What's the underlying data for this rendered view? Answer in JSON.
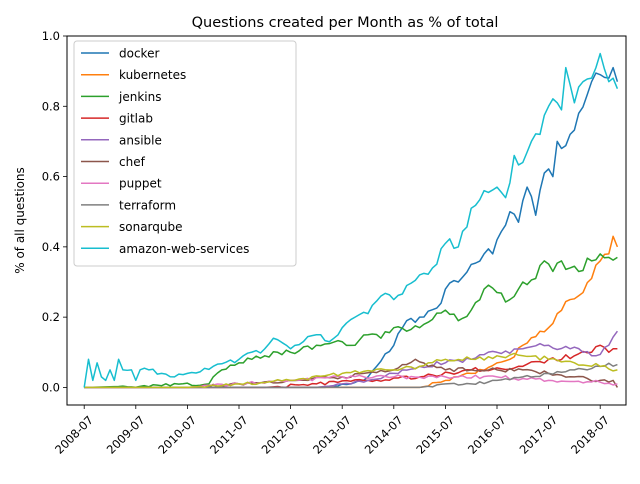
{
  "chart_data": {
    "type": "line",
    "title": "Questions created per Month as % of total",
    "xlabel": "",
    "ylabel": "% of all questions",
    "x_start": "2008-07",
    "x_end": "2018-11",
    "xlim": [
      "2008-03",
      "2019-01"
    ],
    "ylim": [
      -0.05,
      1.0
    ],
    "x_ticks": [
      "2008-07",
      "2009-07",
      "2010-07",
      "2011-07",
      "2012-07",
      "2013-07",
      "2014-07",
      "2015-07",
      "2016-07",
      "2017-07",
      "2018-07"
    ],
    "y_ticks": [
      "0.0",
      "0.2",
      "0.4",
      "0.6",
      "0.8",
      "1.0"
    ],
    "legend_position": "top-left",
    "grid": false,
    "series": [
      {
        "name": "docker",
        "color": "#1f77b4",
        "keypoints": [
          [
            "2008-07",
            0.0
          ],
          [
            "2013-03",
            0.0
          ],
          [
            "2013-09",
            0.01
          ],
          [
            "2014-01",
            0.03
          ],
          [
            "2014-03",
            0.06
          ],
          [
            "2014-07",
            0.12
          ],
          [
            "2014-10",
            0.19
          ],
          [
            "2015-01",
            0.2
          ],
          [
            "2015-06",
            0.24
          ],
          [
            "2015-07",
            0.28
          ],
          [
            "2015-10",
            0.3
          ],
          [
            "2016-01",
            0.35
          ],
          [
            "2016-04",
            0.38
          ],
          [
            "2016-06",
            0.38
          ],
          [
            "2016-07",
            0.42
          ],
          [
            "2016-10",
            0.5
          ],
          [
            "2016-12",
            0.47
          ],
          [
            "2017-02",
            0.57
          ],
          [
            "2017-04",
            0.49
          ],
          [
            "2017-06",
            0.61
          ],
          [
            "2017-08",
            0.6
          ],
          [
            "2017-09",
            0.7
          ],
          [
            "2017-10",
            0.68
          ],
          [
            "2017-12",
            0.72
          ],
          [
            "2018-02",
            0.78
          ],
          [
            "2018-05",
            0.87
          ],
          [
            "2018-07",
            0.89
          ],
          [
            "2018-09",
            0.88
          ],
          [
            "2018-10",
            0.91
          ],
          [
            "2018-11",
            0.87
          ]
        ]
      },
      {
        "name": "kubernetes",
        "color": "#ff7f0e",
        "keypoints": [
          [
            "2008-07",
            0.0
          ],
          [
            "2015-01",
            0.0
          ],
          [
            "2015-07",
            0.02
          ],
          [
            "2016-01",
            0.04
          ],
          [
            "2016-07",
            0.07
          ],
          [
            "2016-10",
            0.08
          ],
          [
            "2017-01",
            0.12
          ],
          [
            "2017-05",
            0.16
          ],
          [
            "2017-07",
            0.17
          ],
          [
            "2017-09",
            0.21
          ],
          [
            "2017-12",
            0.25
          ],
          [
            "2018-03",
            0.27
          ],
          [
            "2018-05",
            0.31
          ],
          [
            "2018-07",
            0.36
          ],
          [
            "2018-09",
            0.38
          ],
          [
            "2018-10",
            0.43
          ],
          [
            "2018-11",
            0.4
          ]
        ]
      },
      {
        "name": "jenkins",
        "color": "#2ca02c",
        "keypoints": [
          [
            "2008-07",
            0.0
          ],
          [
            "2010-12",
            0.01
          ],
          [
            "2011-01",
            0.03
          ],
          [
            "2011-03",
            0.05
          ],
          [
            "2011-07",
            0.07
          ],
          [
            "2011-10",
            0.08
          ],
          [
            "2012-01",
            0.09
          ],
          [
            "2012-04",
            0.1
          ],
          [
            "2012-07",
            0.1
          ],
          [
            "2013-01",
            0.12
          ],
          [
            "2013-07",
            0.13
          ],
          [
            "2013-10",
            0.12
          ],
          [
            "2014-01",
            0.15
          ],
          [
            "2014-04",
            0.14
          ],
          [
            "2014-07",
            0.17
          ],
          [
            "2014-10",
            0.16
          ],
          [
            "2015-01",
            0.17
          ],
          [
            "2015-07",
            0.22
          ],
          [
            "2015-10",
            0.19
          ],
          [
            "2016-01",
            0.22
          ],
          [
            "2016-04",
            0.28
          ],
          [
            "2016-07",
            0.27
          ],
          [
            "2016-10",
            0.25
          ],
          [
            "2017-01",
            0.3
          ],
          [
            "2017-04",
            0.31
          ],
          [
            "2017-06",
            0.36
          ],
          [
            "2017-08",
            0.33
          ],
          [
            "2017-10",
            0.36
          ],
          [
            "2017-12",
            0.34
          ],
          [
            "2018-02",
            0.33
          ],
          [
            "2018-05",
            0.36
          ],
          [
            "2018-07",
            0.38
          ],
          [
            "2018-09",
            0.37
          ],
          [
            "2018-11",
            0.37
          ]
        ]
      },
      {
        "name": "gitlab",
        "color": "#d62728",
        "keypoints": [
          [
            "2008-07",
            0.0
          ],
          [
            "2012-01",
            0.0
          ],
          [
            "2013-01",
            0.01
          ],
          [
            "2014-01",
            0.02
          ],
          [
            "2015-01",
            0.03
          ],
          [
            "2016-01",
            0.05
          ],
          [
            "2017-01",
            0.06
          ],
          [
            "2017-07",
            0.08
          ],
          [
            "2018-01",
            0.09
          ],
          [
            "2018-05",
            0.1
          ],
          [
            "2018-07",
            0.12
          ],
          [
            "2018-09",
            0.1
          ],
          [
            "2018-11",
            0.11
          ]
        ]
      },
      {
        "name": "ansible",
        "color": "#9467bd",
        "keypoints": [
          [
            "2008-07",
            0.0
          ],
          [
            "2013-01",
            0.0
          ],
          [
            "2013-07",
            0.01
          ],
          [
            "2014-01",
            0.02
          ],
          [
            "2014-07",
            0.04
          ],
          [
            "2015-01",
            0.06
          ],
          [
            "2015-07",
            0.07
          ],
          [
            "2016-01",
            0.08
          ],
          [
            "2016-07",
            0.1
          ],
          [
            "2017-01",
            0.11
          ],
          [
            "2017-07",
            0.12
          ],
          [
            "2017-12",
            0.11
          ],
          [
            "2018-03",
            0.1
          ],
          [
            "2018-06",
            0.09
          ],
          [
            "2018-09",
            0.12
          ],
          [
            "2018-11",
            0.16
          ]
        ]
      },
      {
        "name": "chef",
        "color": "#8c564b",
        "keypoints": [
          [
            "2008-07",
            0.0
          ],
          [
            "2010-07",
            0.0
          ],
          [
            "2011-07",
            0.01
          ],
          [
            "2012-07",
            0.02
          ],
          [
            "2013-07",
            0.03
          ],
          [
            "2014-07",
            0.05
          ],
          [
            "2014-12",
            0.08
          ],
          [
            "2015-03",
            0.06
          ],
          [
            "2015-07",
            0.05
          ],
          [
            "2016-01",
            0.05
          ],
          [
            "2016-07",
            0.05
          ],
          [
            "2017-01",
            0.05
          ],
          [
            "2017-07",
            0.04
          ],
          [
            "2018-01",
            0.03
          ],
          [
            "2018-07",
            0.02
          ],
          [
            "2018-10",
            0.02
          ],
          [
            "2018-11",
            0.0
          ]
        ]
      },
      {
        "name": "puppet",
        "color": "#e377c2",
        "keypoints": [
          [
            "2008-07",
            0.0
          ],
          [
            "2010-07",
            0.0
          ],
          [
            "2011-07",
            0.01
          ],
          [
            "2012-07",
            0.02
          ],
          [
            "2013-07",
            0.03
          ],
          [
            "2014-07",
            0.03
          ],
          [
            "2015-07",
            0.03
          ],
          [
            "2016-07",
            0.03
          ],
          [
            "2017-07",
            0.02
          ],
          [
            "2018-07",
            0.015
          ],
          [
            "2018-11",
            0.01
          ]
        ]
      },
      {
        "name": "terraform",
        "color": "#7f7f7f",
        "keypoints": [
          [
            "2008-07",
            0.0
          ],
          [
            "2015-01",
            0.0
          ],
          [
            "2015-07",
            0.01
          ],
          [
            "2016-01",
            0.01
          ],
          [
            "2016-07",
            0.02
          ],
          [
            "2017-01",
            0.03
          ],
          [
            "2017-07",
            0.04
          ],
          [
            "2018-01",
            0.05
          ],
          [
            "2018-07",
            0.06
          ],
          [
            "2018-11",
            0.065
          ]
        ]
      },
      {
        "name": "sonarqube",
        "color": "#bcbd22",
        "keypoints": [
          [
            "2008-07",
            0.0
          ],
          [
            "2010-07",
            0.0
          ],
          [
            "2011-07",
            0.01
          ],
          [
            "2012-07",
            0.02
          ],
          [
            "2013-07",
            0.04
          ],
          [
            "2014-07",
            0.05
          ],
          [
            "2015-01",
            0.06
          ],
          [
            "2015-07",
            0.08
          ],
          [
            "2016-01",
            0.08
          ],
          [
            "2016-07",
            0.09
          ],
          [
            "2017-01",
            0.09
          ],
          [
            "2017-07",
            0.08
          ],
          [
            "2018-01",
            0.07
          ],
          [
            "2018-07",
            0.06
          ],
          [
            "2018-11",
            0.05
          ]
        ]
      },
      {
        "name": "amazon-web-services",
        "color": "#17becf",
        "keypoints": [
          [
            "2008-07",
            0.0
          ],
          [
            "2008-08",
            0.08
          ],
          [
            "2008-09",
            0.02
          ],
          [
            "2008-10",
            0.07
          ],
          [
            "2008-11",
            0.03
          ],
          [
            "2008-12",
            0.02
          ],
          [
            "2009-01",
            0.05
          ],
          [
            "2009-02",
            0.02
          ],
          [
            "2009-03",
            0.08
          ],
          [
            "2009-04",
            0.05
          ],
          [
            "2009-06",
            0.05
          ],
          [
            "2009-07",
            0.02
          ],
          [
            "2009-08",
            0.05
          ],
          [
            "2009-10",
            0.05
          ],
          [
            "2010-01",
            0.04
          ],
          [
            "2010-04",
            0.03
          ],
          [
            "2010-07",
            0.04
          ],
          [
            "2011-01",
            0.06
          ],
          [
            "2011-07",
            0.08
          ],
          [
            "2012-01",
            0.11
          ],
          [
            "2012-03",
            0.14
          ],
          [
            "2012-07",
            0.11
          ],
          [
            "2013-01",
            0.15
          ],
          [
            "2013-04",
            0.13
          ],
          [
            "2013-07",
            0.17
          ],
          [
            "2013-10",
            0.2
          ],
          [
            "2014-01",
            0.21
          ],
          [
            "2014-04",
            0.26
          ],
          [
            "2014-07",
            0.25
          ],
          [
            "2014-10",
            0.29
          ],
          [
            "2015-01",
            0.32
          ],
          [
            "2015-04",
            0.34
          ],
          [
            "2015-07",
            0.41
          ],
          [
            "2015-10",
            0.4
          ],
          [
            "2016-01",
            0.51
          ],
          [
            "2016-04",
            0.56
          ],
          [
            "2016-07",
            0.57
          ],
          [
            "2016-09",
            0.54
          ],
          [
            "2016-11",
            0.66
          ],
          [
            "2017-01",
            0.64
          ],
          [
            "2017-03",
            0.7
          ],
          [
            "2017-05",
            0.72
          ],
          [
            "2017-07",
            0.8
          ],
          [
            "2017-09",
            0.81
          ],
          [
            "2017-10",
            0.79
          ],
          [
            "2017-11",
            0.91
          ],
          [
            "2018-01",
            0.81
          ],
          [
            "2018-03",
            0.87
          ],
          [
            "2018-05",
            0.88
          ],
          [
            "2018-07",
            0.95
          ],
          [
            "2018-09",
            0.87
          ],
          [
            "2018-10",
            0.88
          ],
          [
            "2018-11",
            0.85
          ]
        ]
      }
    ]
  }
}
